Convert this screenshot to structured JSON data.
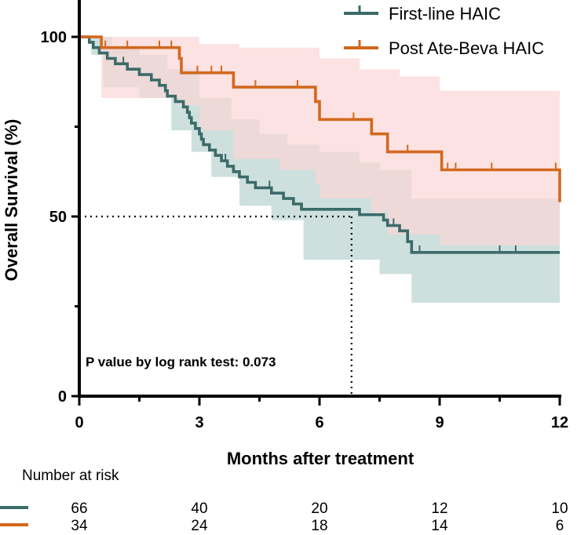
{
  "chart_data": {
    "type": "line",
    "subtype": "kaplan-meier",
    "ylabel": "Overall  Survival (%)",
    "xlabel": "Months after treatment",
    "xlim": [
      0,
      12
    ],
    "ylim": [
      0,
      100
    ],
    "xticks": [
      0,
      3,
      6,
      9,
      12
    ],
    "xtick_labels": [
      "0",
      "3",
      "6",
      "9",
      "12"
    ],
    "yticks": [
      0,
      50,
      100
    ],
    "ytick_labels": [
      "0",
      "50",
      "100"
    ],
    "legend_placement": "top-right",
    "annotation": "P value by log rank test: 0.073",
    "median_reference": {
      "x": 6.8,
      "y": 50
    },
    "series": [
      {
        "name": "First-line HAIC",
        "color": "#3a6b69",
        "ci_color": "#c4dad8",
        "steps": [
          [
            0,
            100
          ],
          [
            0.25,
            98.5
          ],
          [
            0.35,
            97
          ],
          [
            0.5,
            95.5
          ],
          [
            0.7,
            94
          ],
          [
            0.9,
            92.5
          ],
          [
            1.1,
            92.5
          ],
          [
            1.2,
            91
          ],
          [
            1.5,
            89.5
          ],
          [
            1.8,
            88
          ],
          [
            2.0,
            86.5
          ],
          [
            2.15,
            85
          ],
          [
            2.2,
            83.5
          ],
          [
            2.4,
            82
          ],
          [
            2.6,
            80.5
          ],
          [
            2.7,
            79
          ],
          [
            2.75,
            77.5
          ],
          [
            2.8,
            76
          ],
          [
            2.9,
            74.5
          ],
          [
            3.0,
            73
          ],
          [
            3.05,
            71.5
          ],
          [
            3.1,
            70
          ],
          [
            3.25,
            68.5
          ],
          [
            3.4,
            67
          ],
          [
            3.55,
            65.5
          ],
          [
            3.7,
            64
          ],
          [
            3.85,
            62.5
          ],
          [
            4.0,
            61
          ],
          [
            4.2,
            59.5
          ],
          [
            4.4,
            58
          ],
          [
            4.75,
            58
          ],
          [
            4.8,
            56.5
          ],
          [
            5.1,
            55
          ],
          [
            5.35,
            53.5
          ],
          [
            5.55,
            52
          ],
          [
            6.95,
            52
          ],
          [
            7.0,
            50.5
          ],
          [
            7.6,
            49
          ],
          [
            7.7,
            47.5
          ],
          [
            7.85,
            47.5
          ],
          [
            8.0,
            46
          ],
          [
            8.2,
            43
          ],
          [
            8.3,
            40
          ],
          [
            12,
            40
          ]
        ],
        "ci_upper": [
          [
            0,
            100
          ],
          [
            0.4,
            100
          ],
          [
            0.8,
            97
          ],
          [
            1.5,
            95
          ],
          [
            2.2,
            91
          ],
          [
            3.0,
            83
          ],
          [
            3.8,
            77
          ],
          [
            4.5,
            73
          ],
          [
            5.2,
            70
          ],
          [
            6.0,
            68
          ],
          [
            7.0,
            65
          ],
          [
            7.5,
            63
          ],
          [
            8.3,
            55
          ],
          [
            12,
            55
          ]
        ],
        "ci_lower": [
          [
            0,
            100
          ],
          [
            0.3,
            95
          ],
          [
            0.6,
            86
          ],
          [
            1.5,
            83
          ],
          [
            2.3,
            74
          ],
          [
            2.8,
            68
          ],
          [
            3.3,
            61
          ],
          [
            4.0,
            53
          ],
          [
            4.8,
            49
          ],
          [
            5.6,
            38
          ],
          [
            7.5,
            34
          ],
          [
            8.3,
            26
          ],
          [
            12,
            26
          ]
        ],
        "censor_times": [
          1.1,
          3.65,
          4.75,
          7.85,
          8.5,
          10.5,
          10.9
        ],
        "risk_numbers": [
          "66",
          "40",
          "20",
          "12",
          "10"
        ]
      },
      {
        "name": "Post Ate-Beva HAIC",
        "color": "#d2691e",
        "ci_color": "#fbd5d5",
        "steps": [
          [
            0,
            100
          ],
          [
            0.55,
            97
          ],
          [
            2.5,
            94
          ],
          [
            2.55,
            90
          ],
          [
            3.8,
            90
          ],
          [
            3.85,
            86
          ],
          [
            5.85,
            86
          ],
          [
            5.9,
            82
          ],
          [
            6.0,
            77
          ],
          [
            7.2,
            77
          ],
          [
            7.3,
            73
          ],
          [
            7.7,
            68
          ],
          [
            9.0,
            68
          ],
          [
            9.05,
            63
          ],
          [
            11.95,
            63
          ],
          [
            12,
            54
          ]
        ],
        "ci_upper": [
          [
            0,
            100
          ],
          [
            1.0,
            100
          ],
          [
            2.5,
            100
          ],
          [
            3.0,
            98
          ],
          [
            4.0,
            97
          ],
          [
            5.0,
            97
          ],
          [
            6.0,
            94
          ],
          [
            7.0,
            91
          ],
          [
            8.0,
            89
          ],
          [
            9.0,
            85
          ],
          [
            11.9,
            85
          ],
          [
            12,
            75
          ]
        ],
        "ci_lower": [
          [
            0,
            100
          ],
          [
            0.55,
            83
          ],
          [
            2.5,
            81
          ],
          [
            3.0,
            74
          ],
          [
            3.85,
            66
          ],
          [
            5.0,
            63
          ],
          [
            5.9,
            59
          ],
          [
            6.0,
            55
          ],
          [
            7.3,
            51
          ],
          [
            7.7,
            45
          ],
          [
            9.0,
            42
          ],
          [
            12,
            42
          ],
          [
            12,
            29
          ]
        ],
        "censor_times": [
          0.65,
          1.2,
          2.0,
          2.3,
          2.95,
          3.3,
          3.55,
          3.85,
          4.4,
          5.45,
          6.85,
          8.2,
          9.2,
          9.4,
          10.3,
          11.9
        ],
        "risk_numbers": [
          "34",
          "24",
          "18",
          "14",
          "6"
        ]
      }
    ],
    "risk_table": {
      "title": "Number at risk",
      "times": [
        0,
        3,
        6,
        9,
        12
      ]
    }
  }
}
